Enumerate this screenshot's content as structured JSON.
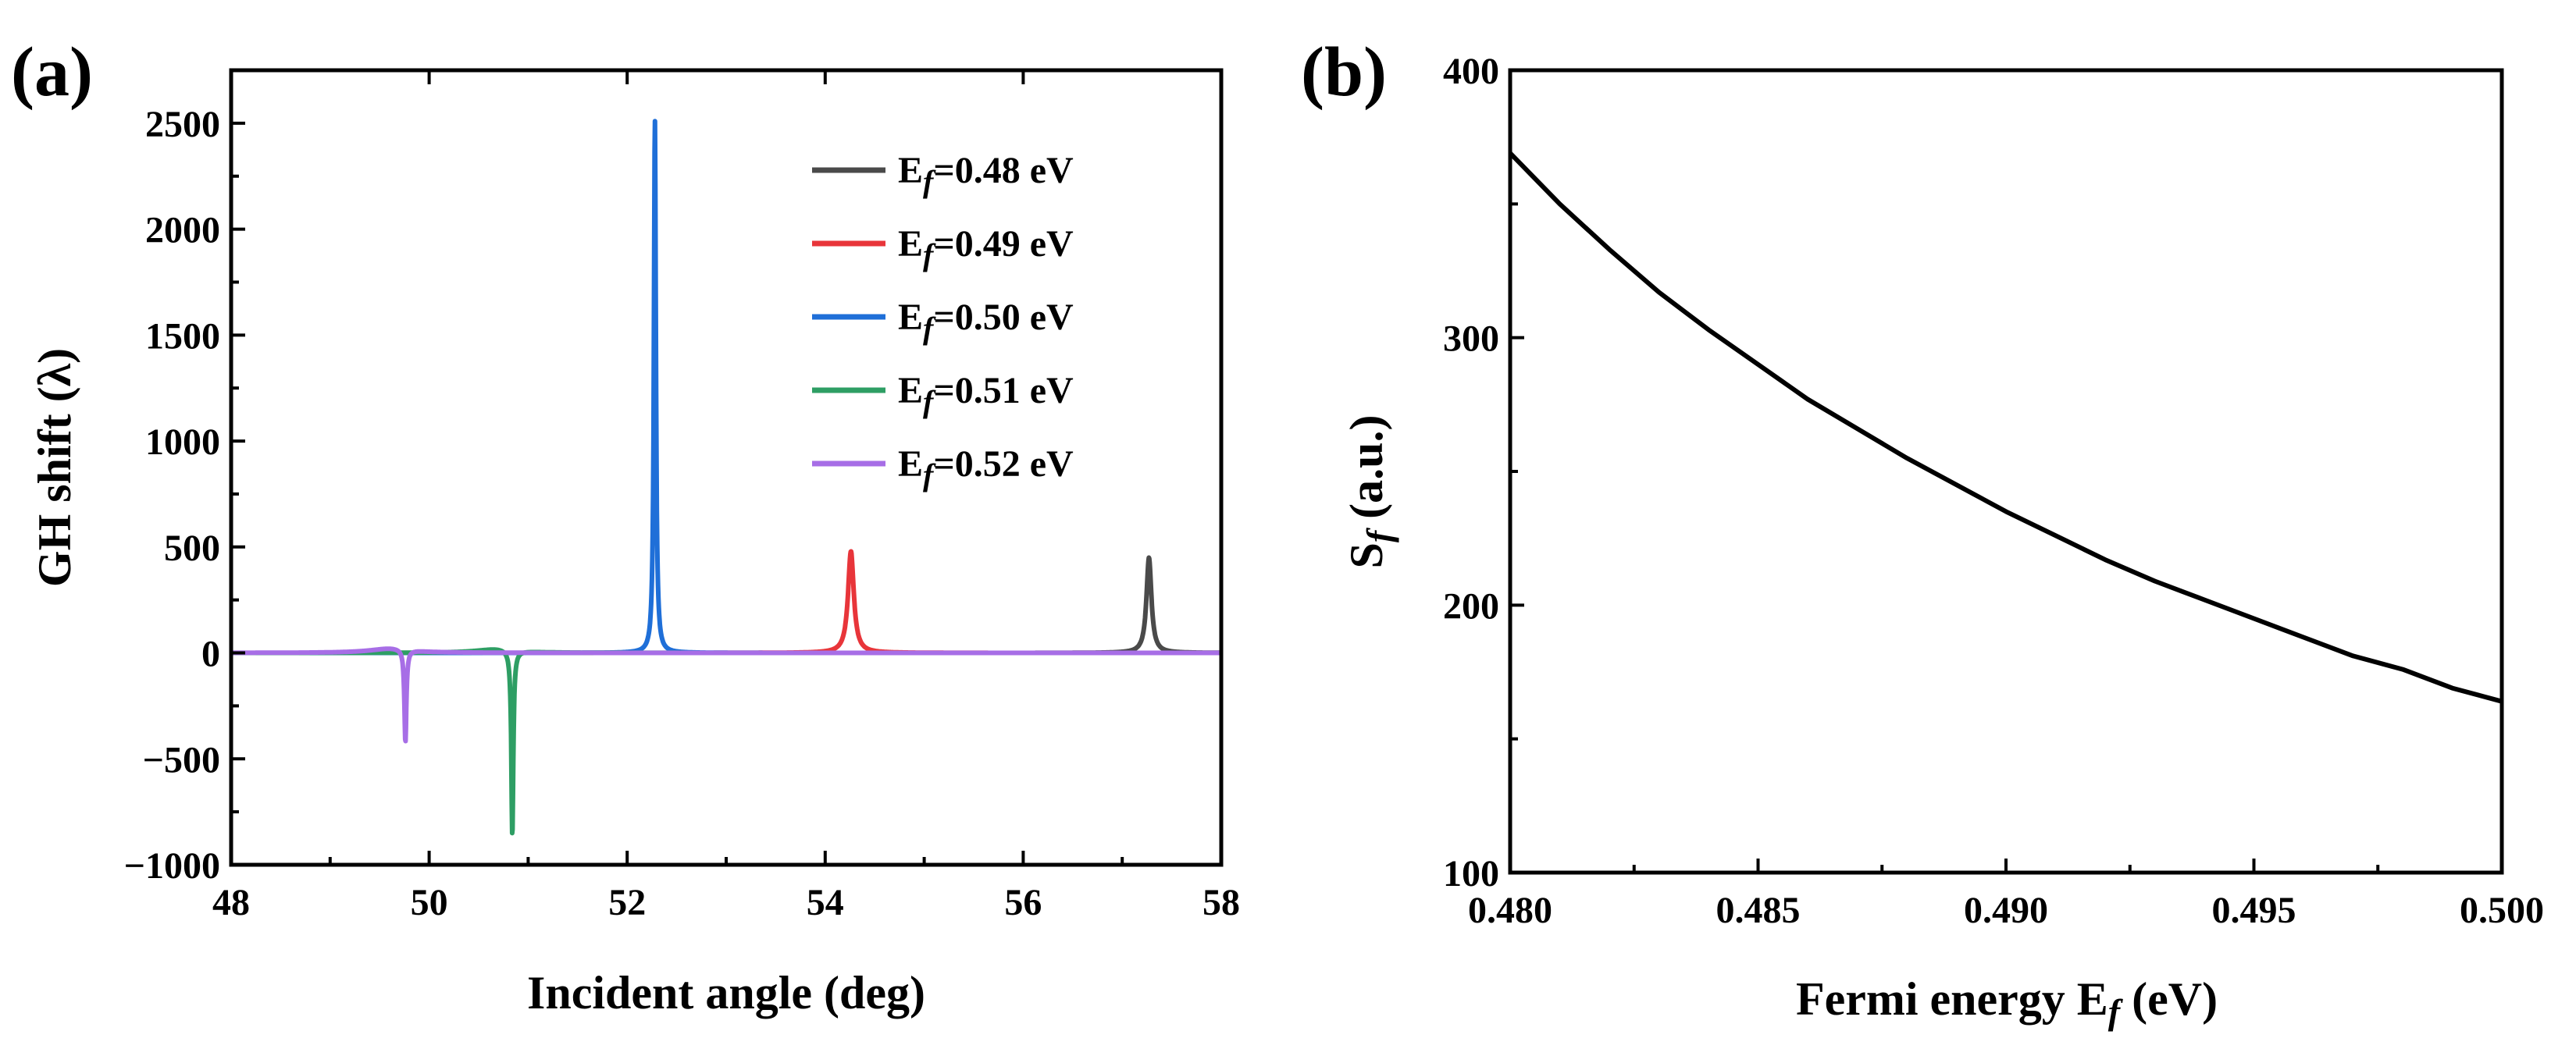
{
  "chart_data": [
    {
      "type": "line",
      "panel_label": "(a)",
      "xlabel": "Incident angle (deg)",
      "ylabel": "GH shift (λ)",
      "xlim": [
        48,
        58
      ],
      "ylim": [
        -1000,
        2750
      ],
      "xticks": [
        48,
        50,
        52,
        54,
        56,
        58
      ],
      "yticks": [
        -1000,
        -500,
        0,
        500,
        1000,
        1500,
        2000,
        2500
      ],
      "xtick_labels": [
        "48",
        "50",
        "52",
        "54",
        "56",
        "58"
      ],
      "ytick_labels": [
        "−1000",
        "−500",
        "0",
        "500",
        "1000",
        "1500",
        "2000",
        "2500"
      ],
      "legend_position": "top-right",
      "series": [
        {
          "name": "E",
          "sub": "f",
          "suffix": "=0.48 eV",
          "color": "#4a4a4a",
          "peaks": [
            {
              "x0": 57.27,
              "amp": 450,
              "gamma": 0.03
            }
          ]
        },
        {
          "name": "E",
          "sub": "f",
          "suffix": "=0.49 eV",
          "color": "#e8353a",
          "peaks": [
            {
              "x0": 54.26,
              "amp": 480,
              "gamma": 0.035
            }
          ]
        },
        {
          "name": "E",
          "sub": "f",
          "suffix": "=0.50 eV",
          "color": "#1f6fd8",
          "peaks": [
            {
              "x0": 52.28,
              "amp": 2520,
              "gamma": 0.012
            }
          ]
        },
        {
          "name": "E",
          "sub": "f",
          "suffix": "=0.51 eV",
          "color": "#2e9e64",
          "peaks": [
            {
              "x0": 50.84,
              "amp": -880,
              "gamma": 0.012
            },
            {
              "x0": 50.7,
              "amp": 20,
              "gamma": 0.25
            }
          ]
        },
        {
          "name": "E",
          "sub": "f",
          "suffix": "=0.52 eV",
          "color": "#a76ee6",
          "peaks": [
            {
              "x0": 49.76,
              "amp": -440,
              "gamma": 0.012
            },
            {
              "x0": 49.62,
              "amp": 22,
              "gamma": 0.25
            }
          ]
        }
      ]
    },
    {
      "type": "line",
      "panel_label": "(b)",
      "xlabel": "Fermi energy E",
      "xlabel_sub": "f",
      "xlabel_suffix": " (eV)",
      "ylabel": "S",
      "ylabel_sub": "f",
      "ylabel_suffix": " (a.u.)",
      "xlim": [
        0.48,
        0.5
      ],
      "ylim": [
        100,
        400
      ],
      "xticks": [
        0.48,
        0.485,
        0.49,
        0.495,
        0.5
      ],
      "yticks": [
        100,
        200,
        300,
        400
      ],
      "xtick_labels": [
        "0.480",
        "0.485",
        "0.490",
        "0.495",
        "0.500"
      ],
      "ytick_labels": [
        "100",
        "200",
        "300",
        "400"
      ],
      "series": [
        {
          "name": "Sf",
          "color": "#000000",
          "x": [
            0.48,
            0.481,
            0.482,
            0.483,
            0.484,
            0.485,
            0.486,
            0.487,
            0.488,
            0.489,
            0.49,
            0.491,
            0.492,
            0.493,
            0.494,
            0.495,
            0.496,
            0.497,
            0.498,
            0.499,
            0.5
          ],
          "y": [
            369,
            350,
            333,
            317,
            303,
            290,
            277,
            266,
            255,
            245,
            235,
            226,
            217,
            209,
            202,
            195,
            188,
            181,
            176,
            169,
            164
          ]
        }
      ]
    }
  ]
}
